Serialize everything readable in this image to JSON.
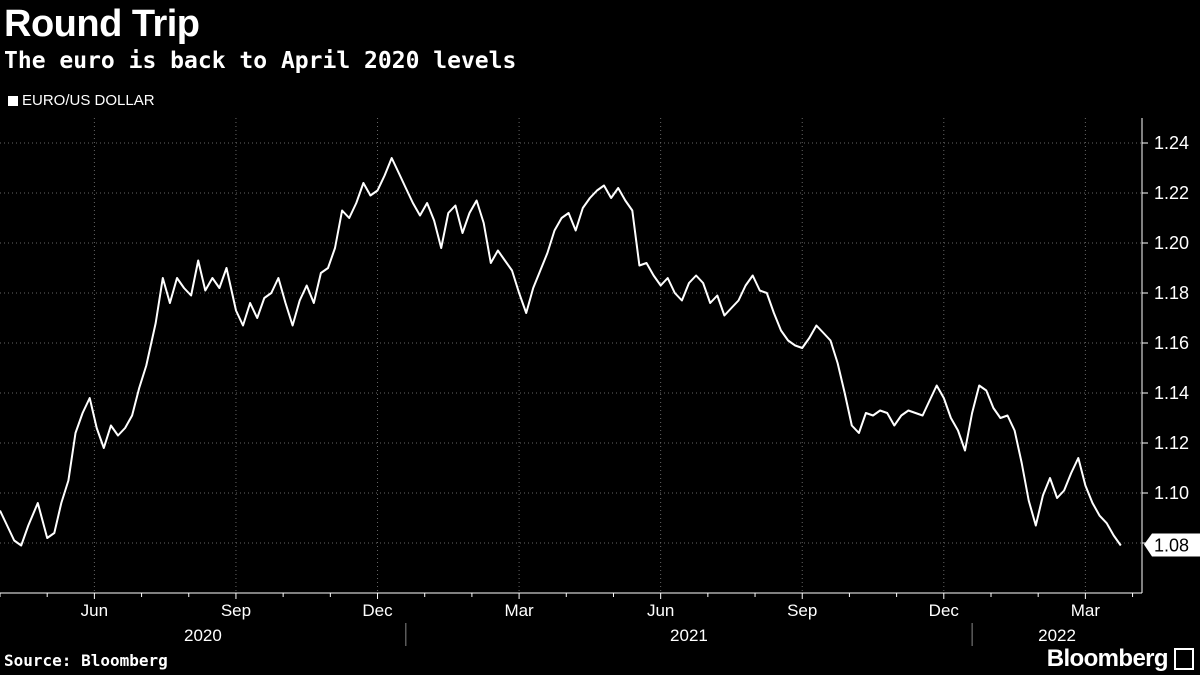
{
  "chart_data": {
    "type": "line",
    "title": "Round Trip",
    "subtitle": "The euro is back to April 2020 levels",
    "xlabel": "",
    "ylabel": "",
    "ylim": [
      1.06,
      1.25
    ],
    "yticks": [
      1.08,
      1.1,
      1.12,
      1.14,
      1.16,
      1.18,
      1.2,
      1.22,
      1.24
    ],
    "ytick_labels": [
      "1.08",
      "1.10",
      "1.12",
      "1.14",
      "1.16",
      "1.18",
      "1.20",
      "1.22",
      "1.24"
    ],
    "x_range_months": [
      0,
      24.2
    ],
    "x_axis_origin": "2020-04",
    "xticks": [
      {
        "label": "Jun",
        "month": 2
      },
      {
        "label": "Sep",
        "month": 5
      },
      {
        "label": "Dec",
        "month": 8
      },
      {
        "label": "Mar",
        "month": 11
      },
      {
        "label": "Jun",
        "month": 14
      },
      {
        "label": "Sep",
        "month": 17
      },
      {
        "label": "Dec",
        "month": 20
      },
      {
        "label": "Mar",
        "month": 23
      }
    ],
    "year_labels": [
      {
        "label": "2020",
        "from_month": 0,
        "to_month": 8.6
      },
      {
        "label": "2021",
        "from_month": 8.6,
        "to_month": 20.6
      },
      {
        "label": "2022",
        "from_month": 20.6,
        "to_month": 24.2
      }
    ],
    "year_dividers": [
      8.6,
      20.6
    ],
    "grid": true,
    "series": [
      {
        "name": "EURO/US DOLLAR",
        "color": "#ffffff",
        "last_value_label": "1.08",
        "points": [
          [
            0.0,
            1.093
          ],
          [
            0.15,
            1.087
          ],
          [
            0.3,
            1.081
          ],
          [
            0.45,
            1.079
          ],
          [
            0.6,
            1.087
          ],
          [
            0.8,
            1.096
          ],
          [
            1.0,
            1.082
          ],
          [
            1.15,
            1.084
          ],
          [
            1.3,
            1.096
          ],
          [
            1.45,
            1.105
          ],
          [
            1.6,
            1.124
          ],
          [
            1.75,
            1.132
          ],
          [
            1.9,
            1.138
          ],
          [
            2.05,
            1.126
          ],
          [
            2.2,
            1.118
          ],
          [
            2.35,
            1.127
          ],
          [
            2.5,
            1.123
          ],
          [
            2.65,
            1.126
          ],
          [
            2.8,
            1.131
          ],
          [
            2.95,
            1.142
          ],
          [
            3.1,
            1.151
          ],
          [
            3.3,
            1.168
          ],
          [
            3.45,
            1.186
          ],
          [
            3.6,
            1.176
          ],
          [
            3.75,
            1.186
          ],
          [
            3.9,
            1.182
          ],
          [
            4.05,
            1.179
          ],
          [
            4.2,
            1.193
          ],
          [
            4.35,
            1.181
          ],
          [
            4.5,
            1.186
          ],
          [
            4.65,
            1.182
          ],
          [
            4.8,
            1.19
          ],
          [
            5.0,
            1.173
          ],
          [
            5.15,
            1.167
          ],
          [
            5.3,
            1.176
          ],
          [
            5.45,
            1.17
          ],
          [
            5.6,
            1.178
          ],
          [
            5.75,
            1.18
          ],
          [
            5.9,
            1.186
          ],
          [
            6.05,
            1.176
          ],
          [
            6.2,
            1.167
          ],
          [
            6.35,
            1.177
          ],
          [
            6.5,
            1.183
          ],
          [
            6.65,
            1.176
          ],
          [
            6.8,
            1.188
          ],
          [
            6.95,
            1.19
          ],
          [
            7.1,
            1.198
          ],
          [
            7.25,
            1.213
          ],
          [
            7.4,
            1.21
          ],
          [
            7.55,
            1.216
          ],
          [
            7.7,
            1.224
          ],
          [
            7.85,
            1.219
          ],
          [
            8.0,
            1.221
          ],
          [
            8.15,
            1.227
          ],
          [
            8.3,
            1.234
          ],
          [
            8.45,
            1.228
          ],
          [
            8.6,
            1.222
          ],
          [
            8.75,
            1.216
          ],
          [
            8.9,
            1.211
          ],
          [
            9.05,
            1.216
          ],
          [
            9.2,
            1.209
          ],
          [
            9.35,
            1.198
          ],
          [
            9.5,
            1.212
          ],
          [
            9.65,
            1.215
          ],
          [
            9.8,
            1.204
          ],
          [
            9.95,
            1.212
          ],
          [
            10.1,
            1.217
          ],
          [
            10.25,
            1.208
          ],
          [
            10.4,
            1.192
          ],
          [
            10.55,
            1.197
          ],
          [
            10.7,
            1.193
          ],
          [
            10.85,
            1.189
          ],
          [
            11.0,
            1.18
          ],
          [
            11.15,
            1.172
          ],
          [
            11.3,
            1.182
          ],
          [
            11.45,
            1.189
          ],
          [
            11.6,
            1.196
          ],
          [
            11.75,
            1.205
          ],
          [
            11.9,
            1.21
          ],
          [
            12.05,
            1.212
          ],
          [
            12.2,
            1.205
          ],
          [
            12.35,
            1.214
          ],
          [
            12.5,
            1.218
          ],
          [
            12.65,
            1.221
          ],
          [
            12.8,
            1.223
          ],
          [
            12.95,
            1.218
          ],
          [
            13.1,
            1.222
          ],
          [
            13.25,
            1.217
          ],
          [
            13.4,
            1.213
          ],
          [
            13.55,
            1.191
          ],
          [
            13.7,
            1.192
          ],
          [
            13.85,
            1.187
          ],
          [
            14.0,
            1.183
          ],
          [
            14.15,
            1.186
          ],
          [
            14.3,
            1.18
          ],
          [
            14.45,
            1.177
          ],
          [
            14.6,
            1.184
          ],
          [
            14.75,
            1.187
          ],
          [
            14.9,
            1.184
          ],
          [
            15.05,
            1.176
          ],
          [
            15.2,
            1.179
          ],
          [
            15.35,
            1.171
          ],
          [
            15.5,
            1.174
          ],
          [
            15.65,
            1.177
          ],
          [
            15.8,
            1.183
          ],
          [
            15.95,
            1.187
          ],
          [
            16.1,
            1.181
          ],
          [
            16.25,
            1.18
          ],
          [
            16.4,
            1.172
          ],
          [
            16.55,
            1.165
          ],
          [
            16.7,
            1.161
          ],
          [
            16.85,
            1.159
          ],
          [
            17.0,
            1.158
          ],
          [
            17.15,
            1.162
          ],
          [
            17.3,
            1.167
          ],
          [
            17.45,
            1.164
          ],
          [
            17.6,
            1.161
          ],
          [
            17.75,
            1.152
          ],
          [
            17.9,
            1.14
          ],
          [
            18.05,
            1.127
          ],
          [
            18.2,
            1.124
          ],
          [
            18.35,
            1.132
          ],
          [
            18.5,
            1.131
          ],
          [
            18.65,
            1.133
          ],
          [
            18.8,
            1.132
          ],
          [
            18.95,
            1.127
          ],
          [
            19.1,
            1.131
          ],
          [
            19.25,
            1.133
          ],
          [
            19.4,
            1.132
          ],
          [
            19.55,
            1.131
          ],
          [
            19.7,
            1.137
          ],
          [
            19.85,
            1.143
          ],
          [
            20.0,
            1.138
          ],
          [
            20.15,
            1.13
          ],
          [
            20.3,
            1.125
          ],
          [
            20.45,
            1.117
          ],
          [
            20.6,
            1.132
          ],
          [
            20.75,
            1.143
          ],
          [
            20.9,
            1.141
          ],
          [
            21.05,
            1.134
          ],
          [
            21.2,
            1.13
          ],
          [
            21.35,
            1.131
          ],
          [
            21.5,
            1.125
          ],
          [
            21.65,
            1.112
          ],
          [
            21.8,
            1.097
          ],
          [
            21.95,
            1.087
          ],
          [
            22.1,
            1.099
          ],
          [
            22.25,
            1.106
          ],
          [
            22.4,
            1.098
          ],
          [
            22.55,
            1.101
          ],
          [
            22.7,
            1.108
          ],
          [
            22.85,
            1.114
          ],
          [
            23.0,
            1.103
          ],
          [
            23.15,
            1.096
          ],
          [
            23.3,
            1.091
          ],
          [
            23.45,
            1.088
          ],
          [
            23.6,
            1.083
          ],
          [
            23.75,
            1.079
          ]
        ]
      }
    ]
  },
  "source": "Source: Bloomberg",
  "brand": "Bloomberg"
}
